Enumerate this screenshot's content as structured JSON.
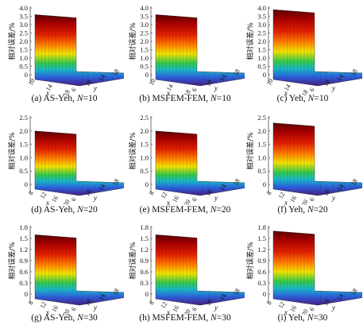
{
  "figure": {
    "ylabel": "相对误差/%",
    "x_axis_letter": "x",
    "y_axis_letter": "y",
    "rows": [
      {
        "z_ticks": [
          "4.0",
          "3.5",
          "3.0",
          "2.5",
          "2.0",
          "1.5",
          "1.0",
          "0.5",
          "0"
        ],
        "x_ticks": [
          "10",
          "14",
          "18"
        ],
        "y_ticks": [
          "6",
          "10",
          "14",
          "18"
        ],
        "panels": [
          {
            "caption_prefix": "(a) AS-Yeh, ",
            "caption_var": "N",
            "caption_suffix": "=10",
            "max": 3.6
          },
          {
            "caption_prefix": "(b) MSFEM-FEM, ",
            "caption_var": "N",
            "caption_suffix": "=10",
            "max": 3.6
          },
          {
            "caption_prefix": "(c) Yeh, ",
            "caption_var": "N",
            "caption_suffix": "=10",
            "max": 3.9
          }
        ]
      },
      {
        "z_ticks": [
          "2.5",
          "2.0",
          "1.5",
          "1.0",
          "0.5",
          "0"
        ],
        "x_ticks": [
          "8",
          "12",
          "16",
          "20"
        ],
        "y_ticks": [
          "6",
          "10",
          "14",
          "18"
        ],
        "panels": [
          {
            "caption_prefix": "(d) AS-Yeh, ",
            "caption_var": "N",
            "caption_suffix": "=20",
            "max": 2.0
          },
          {
            "caption_prefix": "(e) MSFEM-FEM, ",
            "caption_var": "N",
            "caption_suffix": "=20",
            "max": 2.0
          },
          {
            "caption_prefix": "(f) Yeh, ",
            "caption_var": "N",
            "caption_suffix": "=20",
            "max": 2.3
          }
        ]
      },
      {
        "z_ticks": [
          "1.8",
          "1.5",
          "1.2",
          "0.9",
          "0.6",
          "0.3",
          "0"
        ],
        "x_ticks": [
          "8",
          "12",
          "16",
          "20"
        ],
        "y_ticks": [
          "6",
          "10",
          "14",
          "18"
        ],
        "panels": [
          {
            "caption_prefix": "(g) AS-Yeh, ",
            "caption_var": "N",
            "caption_suffix": "=30",
            "max": 1.6
          },
          {
            "caption_prefix": "(h) MSFEM-FEM, ",
            "caption_var": "N",
            "caption_suffix": "=30",
            "max": 1.6
          },
          {
            "caption_prefix": "(i) Yeh, ",
            "caption_var": "N",
            "caption_suffix": "=30",
            "max": 1.7
          }
        ]
      }
    ]
  }
}
